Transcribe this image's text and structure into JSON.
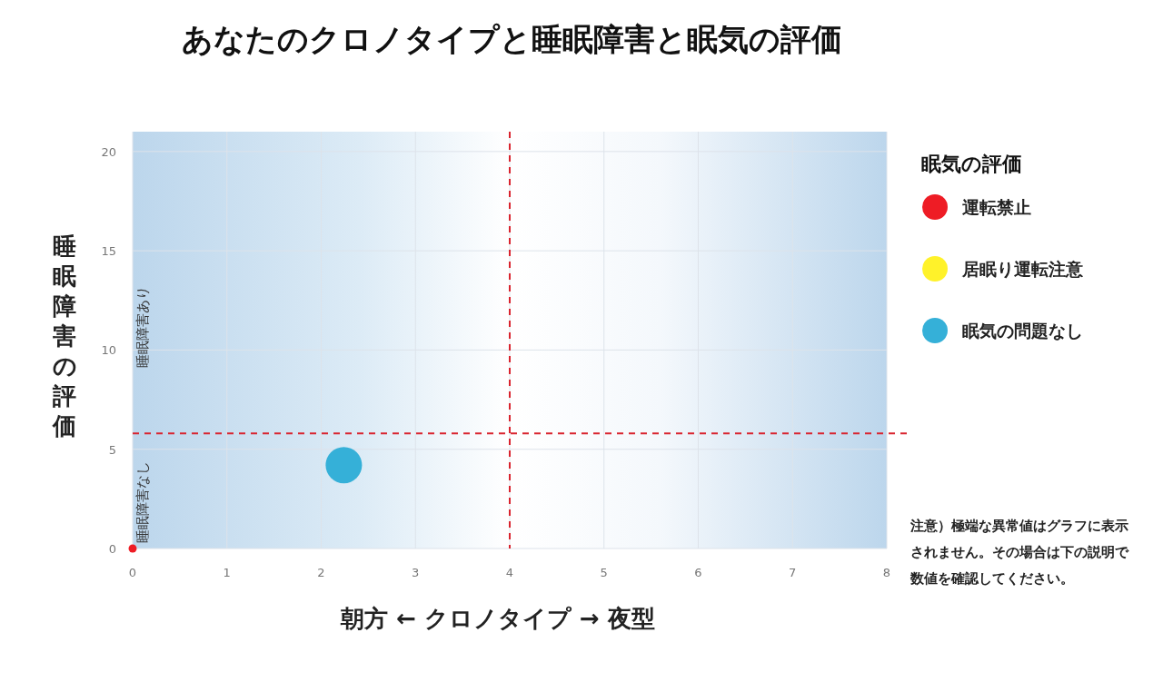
{
  "chart_data": {
    "type": "bubble",
    "title": "あなたのクロノタイプと睡眠障害と眠気の評価",
    "xlabel": "朝方 ← クロノタイプ → 夜型",
    "ylabel": "睡眠障害の評価",
    "legend_title": "眠気の評価",
    "xlim": [
      0,
      8
    ],
    "ylim": [
      0,
      21
    ],
    "xticks": [
      0,
      1,
      2,
      3,
      4,
      5,
      6,
      7,
      8
    ],
    "yticks": [
      0,
      5,
      10,
      15,
      20
    ],
    "grid": true,
    "legend": "right",
    "marker": "circle",
    "series": [
      {
        "name": "運転禁止",
        "color": "#ee1c25",
        "x": [
          0
        ],
        "values": [
          0
        ],
        "sizes": [
          0.05
        ]
      },
      {
        "name": "居眠り運転注意",
        "color": "#fff22a"
      },
      {
        "name": "眠気の問題なし",
        "color": "#35b0d8",
        "x": [
          2.24
        ],
        "values": [
          4.2
        ],
        "sizes": [
          1
        ]
      }
    ],
    "ref_lines": [
      {
        "axis": "x",
        "value": 4,
        "color": "#d9232e",
        "line_style": "dashed"
      },
      {
        "axis": "y",
        "value": 5.8,
        "color": "#d9232e",
        "line_style": "dashed"
      }
    ],
    "annotations": [
      "睡眠障害なし",
      "睡眠障害あり",
      "注意）極端な異常値はグラフに表示されません。その場合は下の説明で数値を確認してください。"
    ]
  }
}
